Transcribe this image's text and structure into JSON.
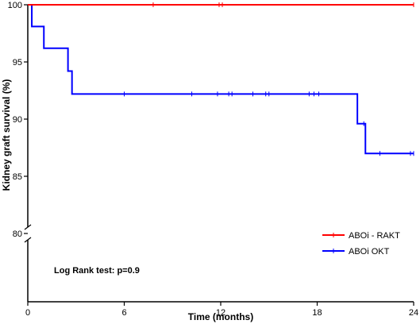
{
  "chart_data": {
    "type": "line",
    "subtype": "kaplan-meier",
    "xlabel": "Time (months)",
    "ylabel": "Kidney graft survival (%)",
    "xlim": [
      0,
      24
    ],
    "ylim": [
      80,
      100
    ],
    "y_axis_break": true,
    "x_ticks": [
      0,
      6,
      12,
      18,
      24
    ],
    "x_tick_labels": [
      "0",
      "6",
      "12",
      "18",
      "24"
    ],
    "y_ticks": [
      80,
      85,
      90,
      95,
      100
    ],
    "y_tick_labels": [
      "80",
      "85",
      "90",
      "95",
      "100"
    ],
    "grid": false,
    "legend_position": "bottom-right",
    "annotation": "Log Rank test: p=0.9",
    "series": [
      {
        "name": "ABOi - RAKT",
        "color": "#ff0000",
        "steps": [
          [
            0,
            100
          ],
          [
            24,
            100
          ]
        ],
        "censored_x": [
          7.8,
          11.9,
          12.1,
          24
        ]
      },
      {
        "name": "ABOi OKT",
        "color": "#0000ff",
        "steps": [
          [
            0,
            100
          ],
          [
            0.25,
            98.1
          ],
          [
            1.0,
            96.2
          ],
          [
            2.5,
            94.2
          ],
          [
            2.75,
            92.2
          ],
          [
            20.5,
            89.6
          ],
          [
            21.0,
            87.0
          ],
          [
            24,
            87.0
          ]
        ],
        "censored_x": [
          6.0,
          10.2,
          11.8,
          12.5,
          12.7,
          14.0,
          14.8,
          15.0,
          17.5,
          17.8,
          18.1,
          20.9,
          21.9,
          23.8,
          24
        ]
      }
    ]
  }
}
